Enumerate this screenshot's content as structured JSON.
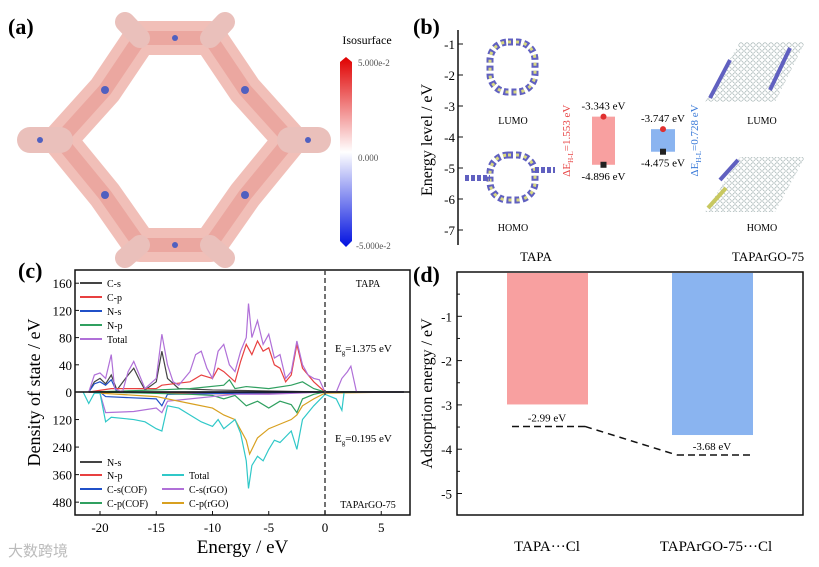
{
  "panels": {
    "a": {
      "label": "(a)",
      "colorbar": {
        "title": "Isosurface",
        "max": "5.000e-2",
        "mid": "0.000",
        "min": "-5.000e-2",
        "colors": [
          "#e00000",
          "#ffffff",
          "#0010e0"
        ]
      }
    },
    "b": {
      "label": "(b)",
      "ylabel": "Energy level / eV",
      "samples": [
        "TAPA",
        "TAPArGO-75"
      ],
      "orbitals": {
        "lumo": "LUMO",
        "homo": "HOMO"
      }
    },
    "c": {
      "label": "(c)"
    },
    "d": {
      "label": "(d)"
    }
  },
  "watermark": "大数跨境",
  "chart_data": [
    {
      "id": "b",
      "type": "bar",
      "ylabel": "Energy level / eV",
      "ylim": [
        -7.5,
        -0.5
      ],
      "yticks": [
        -1,
        -2,
        -3,
        -4,
        -5,
        -6,
        -7
      ],
      "bars": [
        {
          "name": "TAPA",
          "lumo": -3.343,
          "homo": -4.896,
          "lumo_label": "-3.343 eV",
          "homo_label": "-4.896 eV",
          "gap_label": "ΔE",
          "gap_sub": "H-L",
          "gap_value": "=1.553 eV",
          "color": "#f8a0a0"
        },
        {
          "name": "TAPArGO-75",
          "lumo": -3.747,
          "homo": -4.475,
          "lumo_label": "-3.747 eV",
          "homo_label": "-4.475 eV",
          "gap_label": "ΔE",
          "gap_sub": "H-L",
          "gap_value": "=0.728 eV",
          "color": "#8ab4f0"
        }
      ]
    },
    {
      "id": "c",
      "type": "line",
      "xlabel": "Energy / eV",
      "ylabel": "Density of state / eV",
      "xlim": [
        -22.2,
        7.5
      ],
      "xticks": [
        -20,
        -15,
        -10,
        -5,
        0,
        5
      ],
      "yticks_top": [
        0,
        40,
        80,
        120,
        160
      ],
      "yticks_bottom": [
        120,
        240,
        360,
        480
      ],
      "fermi": 0,
      "top": {
        "name": "TAPA",
        "gap": "E",
        "gap_sub": "g",
        "gap_value": "=1.375 eV",
        "series": [
          {
            "name": "C-s",
            "color": "#444444",
            "points": [
              [
                -21,
                0
              ],
              [
                -20.5,
                15
              ],
              [
                -20,
                20
              ],
              [
                -19.5,
                12
              ],
              [
                -19,
                25
              ],
              [
                -18.5,
                3
              ],
              [
                -17.5,
                25
              ],
              [
                -17,
                35
              ],
              [
                -16.5,
                18
              ],
              [
                -16,
                3
              ],
              [
                -15,
                15
              ],
              [
                -14.5,
                60
              ],
              [
                -14,
                20
              ],
              [
                -13,
                5
              ],
              [
                -10,
                3
              ],
              [
                0,
                0
              ],
              [
                7,
                0
              ]
            ]
          },
          {
            "name": "C-p",
            "color": "#e84040",
            "points": [
              [
                -21,
                0
              ],
              [
                -19,
                5
              ],
              [
                -15,
                5
              ],
              [
                -14.5,
                10
              ],
              [
                -12,
                15
              ],
              [
                -11,
                25
              ],
              [
                -10,
                20
              ],
              [
                -9.5,
                35
              ],
              [
                -9,
                30
              ],
              [
                -8,
                15
              ],
              [
                -7.5,
                45
              ],
              [
                -7,
                70
              ],
              [
                -6.5,
                55
              ],
              [
                -6,
                75
              ],
              [
                -5.5,
                60
              ],
              [
                -5,
                65
              ],
              [
                -4.5,
                40
              ],
              [
                -4,
                35
              ],
              [
                -3.5,
                15
              ],
              [
                -3,
                25
              ],
              [
                -2.5,
                70
              ],
              [
                -2,
                35
              ],
              [
                -1,
                15
              ],
              [
                0,
                0
              ],
              [
                7,
                0
              ]
            ]
          },
          {
            "name": "N-s",
            "color": "#2050c8",
            "points": [
              [
                -21,
                0
              ],
              [
                -20.5,
                12
              ],
              [
                -20,
                15
              ],
              [
                -19.5,
                10
              ],
              [
                -19,
                18
              ],
              [
                -18.5,
                0
              ],
              [
                0,
                0
              ],
              [
                7,
                0
              ]
            ]
          },
          {
            "name": "N-p",
            "color": "#30a060",
            "points": [
              [
                -21,
                0
              ],
              [
                -15,
                3
              ],
              [
                -12,
                5
              ],
              [
                -9,
                10
              ],
              [
                -8.5,
                18
              ],
              [
                -8,
                5
              ],
              [
                -7,
                8
              ],
              [
                -5,
                5
              ],
              [
                -3,
                10
              ],
              [
                -2,
                15
              ],
              [
                -1,
                5
              ],
              [
                0,
                0
              ],
              [
                7,
                0
              ]
            ]
          },
          {
            "name": "Total",
            "color": "#b070d8",
            "points": [
              [
                -21,
                0
              ],
              [
                -20.5,
                25
              ],
              [
                -20,
                28
              ],
              [
                -19.5,
                20
              ],
              [
                -19,
                55
              ],
              [
                -18.7,
                5
              ],
              [
                -18,
                0
              ],
              [
                -17.5,
                30
              ],
              [
                -17,
                45
              ],
              [
                -16.5,
                25
              ],
              [
                -16,
                5
              ],
              [
                -15,
                20
              ],
              [
                -14.5,
                85
              ],
              [
                -14,
                40
              ],
              [
                -13.5,
                15
              ],
              [
                -13,
                10
              ],
              [
                -12,
                30
              ],
              [
                -11.5,
                55
              ],
              [
                -11,
                60
              ],
              [
                -10.5,
                35
              ],
              [
                -10,
                20
              ],
              [
                -9.5,
                60
              ],
              [
                -9,
                70
              ],
              [
                -8.5,
                40
              ],
              [
                -8,
                30
              ],
              [
                -7.5,
                60
              ],
              [
                -7,
                80
              ],
              [
                -6.8,
                130
              ],
              [
                -6.5,
                80
              ],
              [
                -6,
                105
              ],
              [
                -5.5,
                70
              ],
              [
                -5,
                85
              ],
              [
                -4.5,
                50
              ],
              [
                -4,
                55
              ],
              [
                -3.5,
                20
              ],
              [
                -3,
                30
              ],
              [
                -2.5,
                75
              ],
              [
                -2,
                40
              ],
              [
                -1.5,
                25
              ],
              [
                -1,
                20
              ],
              [
                -0.5,
                18
              ],
              [
                0,
                0
              ],
              [
                1,
                0
              ],
              [
                1.5,
                20
              ],
              [
                2,
                30
              ],
              [
                2.3,
                38
              ],
              [
                2.8,
                0
              ],
              [
                7,
                0
              ]
            ]
          }
        ]
      },
      "bottom": {
        "name": "TAPArGO-75",
        "gap": "E",
        "gap_sub": "g",
        "gap_value": "=0.195 eV",
        "series": [
          {
            "name": "N-s",
            "color": "#444444",
            "points": [
              [
                -21,
                0
              ],
              [
                -15,
                3
              ],
              [
                -10,
                2
              ],
              [
                0,
                0
              ],
              [
                7,
                0
              ]
            ]
          },
          {
            "name": "N-p",
            "color": "#e84040",
            "points": [
              [
                -21,
                0
              ],
              [
                -14,
                5
              ],
              [
                -9,
                8
              ],
              [
                -5,
                6
              ],
              [
                0,
                0
              ],
              [
                7,
                0
              ]
            ]
          },
          {
            "name": "C-s(COF)",
            "color": "#2050c8",
            "points": [
              [
                -20,
                0
              ],
              [
                -19.5,
                20
              ],
              [
                -15,
                30
              ],
              [
                -14.5,
                60
              ],
              [
                -14,
                10
              ],
              [
                0,
                0
              ],
              [
                7,
                0
              ]
            ]
          },
          {
            "name": "C-p(COF)",
            "color": "#30a060",
            "points": [
              [
                -20,
                0
              ],
              [
                -12,
                10
              ],
              [
                -10,
                15
              ],
              [
                -9,
                30
              ],
              [
                -8,
                15
              ],
              [
                -7,
                60
              ],
              [
                -6,
                40
              ],
              [
                -5,
                70
              ],
              [
                -4,
                40
              ],
              [
                -3,
                55
              ],
              [
                -2.5,
                90
              ],
              [
                -2,
                30
              ],
              [
                -1,
                10
              ],
              [
                0,
                0
              ],
              [
                7,
                0
              ]
            ]
          },
          {
            "name": "C-s(rGO)",
            "color": "#b070d8",
            "points": [
              [
                -20,
                5
              ],
              [
                -19.5,
                90
              ],
              [
                -17,
                85
              ],
              [
                -15,
                70
              ],
              [
                -14.5,
                90
              ],
              [
                -14,
                40
              ],
              [
                -12,
                30
              ],
              [
                -10,
                20
              ],
              [
                -8,
                10
              ],
              [
                -5,
                10
              ],
              [
                0,
                0
              ],
              [
                7,
                0
              ]
            ]
          },
          {
            "name": "C-p(rGO)",
            "color": "#d8a020",
            "points": [
              [
                -20,
                5
              ],
              [
                -15,
                20
              ],
              [
                -12,
                50
              ],
              [
                -10,
                70
              ],
              [
                -9,
                100
              ],
              [
                -8,
                120
              ],
              [
                -7,
                210
              ],
              [
                -6.7,
                270
              ],
              [
                -6,
                200
              ],
              [
                -5,
                160
              ],
              [
                -4,
                140
              ],
              [
                -3,
                120
              ],
              [
                -2.5,
                100
              ],
              [
                -2,
                60
              ],
              [
                -1,
                30
              ],
              [
                0,
                5
              ],
              [
                7,
                0
              ]
            ]
          },
          {
            "name": "Total",
            "color": "#30c8c8",
            "points": [
              [
                -21.5,
                0
              ],
              [
                -21,
                50
              ],
              [
                -20.5,
                5
              ],
              [
                -20,
                5
              ],
              [
                -19.5,
                130
              ],
              [
                -19,
                110
              ],
              [
                -17,
                120
              ],
              [
                -16,
                130
              ],
              [
                -15,
                160
              ],
              [
                -14.5,
                170
              ],
              [
                -14,
                60
              ],
              [
                -13,
                70
              ],
              [
                -12,
                100
              ],
              [
                -11,
                130
              ],
              [
                -10,
                150
              ],
              [
                -9.5,
                120
              ],
              [
                -9,
                160
              ],
              [
                -8,
                120
              ],
              [
                -7.5,
                180
              ],
              [
                -7,
                300
              ],
              [
                -6.8,
                420
              ],
              [
                -6.5,
                320
              ],
              [
                -6,
                280
              ],
              [
                -5.5,
                300
              ],
              [
                -5,
                250
              ],
              [
                -4.5,
                210
              ],
              [
                -4,
                220
              ],
              [
                -3,
                170
              ],
              [
                -2.5,
                250
              ],
              [
                -2,
                120
              ],
              [
                -1,
                60
              ],
              [
                0,
                10
              ],
              [
                1,
                30
              ],
              [
                1.5,
                80
              ],
              [
                1.7,
                0
              ],
              [
                7,
                0
              ]
            ]
          }
        ]
      }
    },
    {
      "id": "d",
      "type": "bar",
      "ylabel": "Adsorption energy / eV",
      "ylim": [
        -5.5,
        0
      ],
      "yticks": [
        -1,
        -2,
        -3,
        -4,
        -5
      ],
      "categories": [
        "TAPA···Cl",
        "TAPArGO-75···Cl"
      ],
      "values": [
        -2.99,
        -3.68
      ],
      "value_labels": [
        "-2.99 eV",
        "-3.68 eV"
      ],
      "colors": [
        "#f8a0a0",
        "#8ab4f0"
      ]
    }
  ]
}
